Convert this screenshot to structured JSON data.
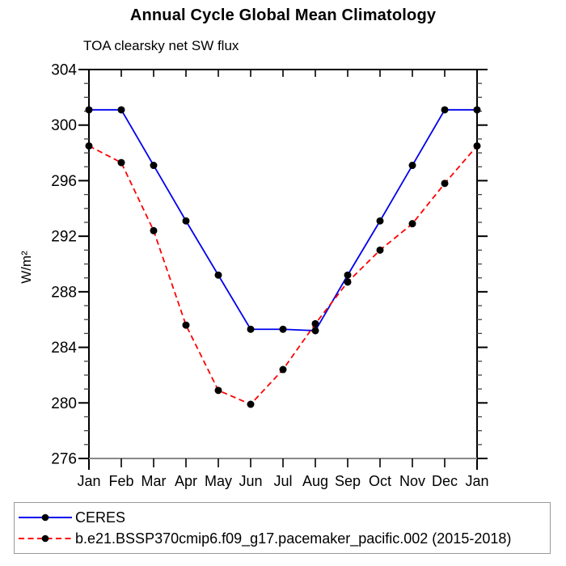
{
  "title": "Annual Cycle Global Mean Climatology",
  "subtitle": "TOA clearsky net SW flux",
  "chart_data": {
    "type": "line",
    "categories": [
      "Jan",
      "Feb",
      "Mar",
      "Apr",
      "May",
      "Jun",
      "Jul",
      "Aug",
      "Sep",
      "Oct",
      "Nov",
      "Dec",
      "Jan"
    ],
    "xlabel": "",
    "ylabel": "W/m²",
    "ylim": [
      276,
      304
    ],
    "yticks_major": [
      276,
      280,
      284,
      288,
      292,
      296,
      300,
      304
    ],
    "ytick_minor_step": 1,
    "grid": false,
    "legend_position": "bottom",
    "series": [
      {
        "name": "CERES",
        "color": "#0000ee",
        "style": "solid",
        "marker": "circle",
        "marker_color": "#000000",
        "values": [
          301.1,
          301.1,
          297.1,
          293.1,
          289.2,
          285.3,
          285.3,
          285.2,
          289.2,
          293.1,
          297.1,
          301.1,
          301.1
        ]
      },
      {
        "name": "b.e21.BSSP370cmip6.f09_g17.pacemaker_pacific.002 (2015-2018)",
        "color": "#ff0000",
        "style": "dashed",
        "marker": "circle",
        "marker_color": "#000000",
        "values": [
          298.5,
          297.3,
          292.4,
          285.6,
          280.9,
          279.9,
          282.4,
          285.7,
          288.7,
          291.0,
          292.9,
          295.8,
          298.5
        ]
      }
    ],
    "axis_colors": {
      "frame": "#000000",
      "bottom_axis_line": "#888888",
      "minor_ticks": "#444444"
    }
  }
}
